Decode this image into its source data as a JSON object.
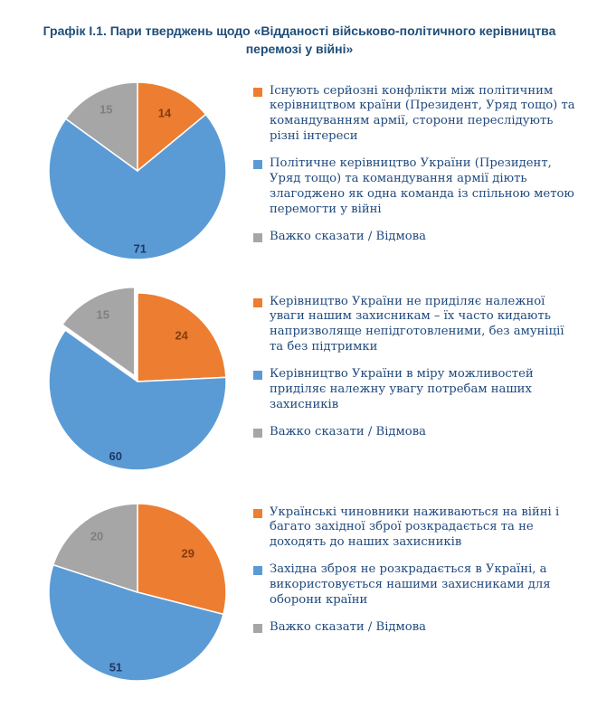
{
  "title": "Графік І.1. Пари тверджень щодо «Відданості військово-політичного керівництва перемозі у війні»",
  "colors": {
    "orange": "#ED7D31",
    "blue": "#5B9BD5",
    "gray": "#A6A6A6",
    "title_text": "#1F4E79",
    "legend_text": "#1F497D"
  },
  "chart_data": [
    {
      "type": "pie",
      "units": "percent",
      "rotation": "clockwise-from-top",
      "legend_position": "right",
      "slices": [
        {
          "value": 14,
          "label": "14",
          "color": "#ED7D31",
          "label_color": "#843C0C",
          "explode": 0,
          "legend": "Існують серйозні конфлікти між політичним керівництвом країни (Президент, Уряд тощо) та командуванням армії, сторони переслідують різні інтереси"
        },
        {
          "value": 71,
          "label": "71",
          "color": "#5B9BD5",
          "label_color": "#1F3864",
          "explode": 0,
          "legend": "Політичне керівництво України (Президент, Уряд тощо) та командування армії діють злагоджено як одна команда із спільною метою перемогти у війні"
        },
        {
          "value": 15,
          "label": "15",
          "color": "#A6A6A6",
          "label_color": "#7F7F7F",
          "explode": 0,
          "legend": "Важко сказати / Відмова"
        }
      ]
    },
    {
      "type": "pie",
      "units": "percent",
      "rotation": "clockwise-from-top",
      "legend_position": "right",
      "slices": [
        {
          "value": 24,
          "label": "24",
          "color": "#ED7D31",
          "label_color": "#843C0C",
          "explode": 0,
          "legend": "Керівництво України не приділяє належної уваги нашим захисникам – їх часто кидають напризволяще непідготовленими, без амуніції та без підтримки"
        },
        {
          "value": 60,
          "label": "60",
          "color": "#5B9BD5",
          "label_color": "#1F3864",
          "explode": 0,
          "legend": "Керівництво України в міру можливостей приділяє належну увагу потребам наших захисників"
        },
        {
          "value": 15,
          "label": "15",
          "color": "#A6A6A6",
          "label_color": "#7F7F7F",
          "explode": 7,
          "legend": "Важко сказати / Відмова"
        }
      ]
    },
    {
      "type": "pie",
      "units": "percent",
      "rotation": "clockwise-from-top",
      "legend_position": "right",
      "slices": [
        {
          "value": 29,
          "label": "29",
          "color": "#ED7D31",
          "label_color": "#843C0C",
          "explode": 0,
          "legend": "Українські чиновники наживаються на війні і багато західної зброї розкрадається та не доходять до наших захисників"
        },
        {
          "value": 51,
          "label": "51",
          "color": "#5B9BD5",
          "label_color": "#1F3864",
          "explode": 0,
          "legend": "Західна зброя не розкрадається в Україні, а використовується нашими захисниками для оборони країни"
        },
        {
          "value": 20,
          "label": "20",
          "color": "#A6A6A6",
          "label_color": "#7F7F7F",
          "explode": 0,
          "legend": "Важко сказати / Відмова"
        }
      ]
    }
  ]
}
